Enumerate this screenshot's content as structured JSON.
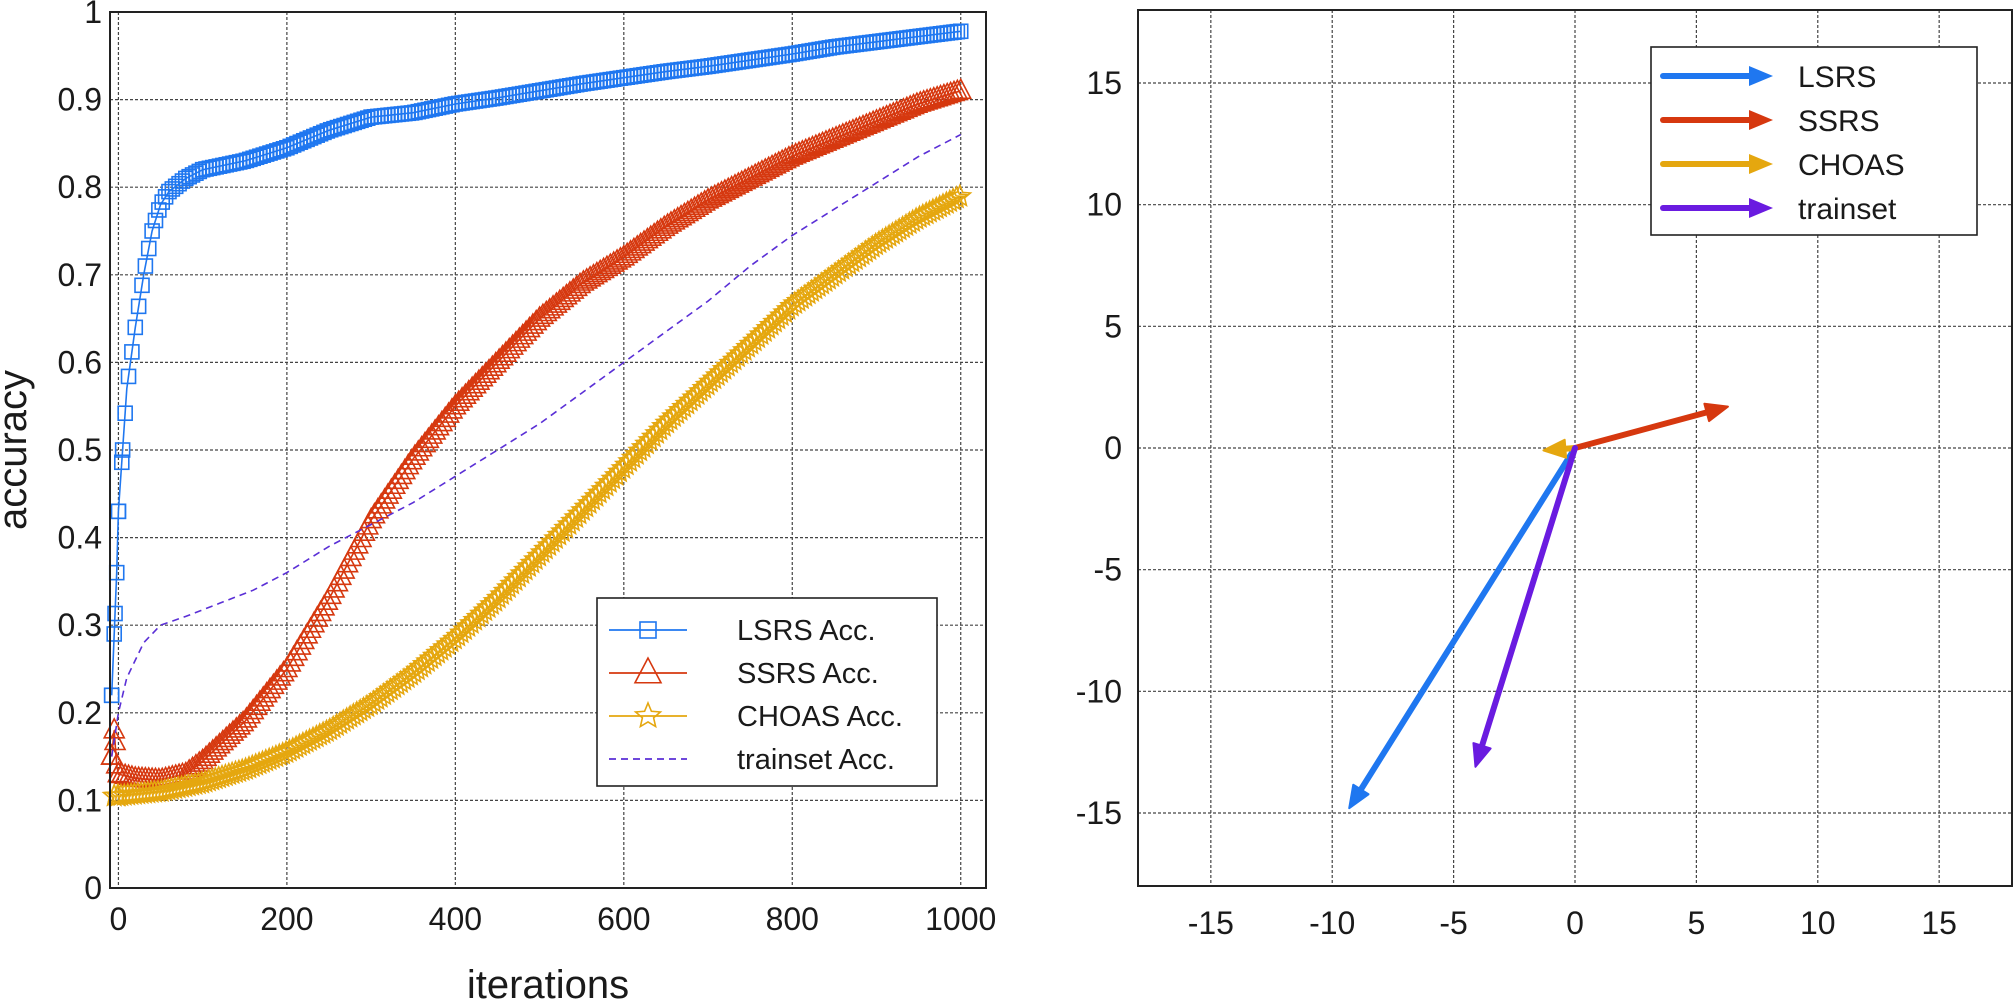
{
  "chart_data": [
    {
      "type": "line",
      "title": "",
      "xlabel": "iterations",
      "ylabel": "accuracy",
      "xlim": [
        -10,
        1030
      ],
      "ylim": [
        0,
        1
      ],
      "xticks": [
        "0",
        "200",
        "400",
        "600",
        "800",
        "1000"
      ],
      "yticks": [
        "0",
        "0.1",
        "0.2",
        "0.3",
        "0.4",
        "0.5",
        "0.6",
        "0.7",
        "0.8",
        "0.9",
        "1"
      ],
      "grid": true,
      "legend_position": "bottom-right",
      "series": [
        {
          "name": "LSRS Acc.",
          "color": "#1f77f0",
          "marker": "square",
          "x": [
            -8,
            -5,
            -2,
            0,
            5,
            10,
            20,
            30,
            40,
            50,
            60,
            80,
            100,
            150,
            200,
            250,
            300,
            350,
            400,
            450,
            500,
            550,
            600,
            650,
            700,
            750,
            800,
            850,
            900,
            950,
            1000
          ],
          "y": [
            0.22,
            0.29,
            0.36,
            0.43,
            0.5,
            0.57,
            0.64,
            0.7,
            0.75,
            0.78,
            0.795,
            0.81,
            0.82,
            0.83,
            0.845,
            0.865,
            0.88,
            0.885,
            0.895,
            0.902,
            0.91,
            0.918,
            0.925,
            0.932,
            0.938,
            0.945,
            0.952,
            0.96,
            0.966,
            0.972,
            0.978
          ]
        },
        {
          "name": "SSRS Acc.",
          "color": "#d6380f",
          "marker": "triangle",
          "x": [
            -8,
            -5,
            -2,
            0,
            20,
            50,
            80,
            100,
            150,
            200,
            250,
            300,
            350,
            400,
            450,
            500,
            550,
            600,
            650,
            700,
            750,
            800,
            850,
            900,
            950,
            1000
          ],
          "y": [
            0.15,
            0.18,
            0.14,
            0.13,
            0.125,
            0.123,
            0.13,
            0.145,
            0.19,
            0.25,
            0.33,
            0.42,
            0.49,
            0.55,
            0.6,
            0.65,
            0.69,
            0.72,
            0.755,
            0.785,
            0.81,
            0.835,
            0.855,
            0.875,
            0.895,
            0.91
          ]
        },
        {
          "name": "CHOAS Acc.",
          "color": "#e5a70f",
          "marker": "star",
          "x": [
            -5,
            0,
            50,
            100,
            150,
            200,
            250,
            300,
            350,
            400,
            450,
            500,
            550,
            600,
            650,
            700,
            750,
            800,
            850,
            900,
            950,
            1000
          ],
          "y": [
            0.105,
            0.105,
            0.11,
            0.12,
            0.135,
            0.155,
            0.18,
            0.21,
            0.245,
            0.285,
            0.33,
            0.38,
            0.43,
            0.48,
            0.53,
            0.575,
            0.62,
            0.665,
            0.7,
            0.735,
            0.765,
            0.79
          ]
        },
        {
          "name": "trainset Acc.",
          "color": "#5a2fd6",
          "marker": "dashed",
          "x": [
            -8,
            0,
            10,
            30,
            50,
            80,
            120,
            160,
            200,
            250,
            300,
            350,
            400,
            450,
            500,
            550,
            600,
            650,
            700,
            750,
            800,
            850,
            900,
            950,
            1000
          ],
          "y": [
            0.15,
            0.2,
            0.24,
            0.28,
            0.3,
            0.31,
            0.325,
            0.34,
            0.36,
            0.39,
            0.415,
            0.44,
            0.47,
            0.5,
            0.53,
            0.565,
            0.6,
            0.635,
            0.67,
            0.71,
            0.745,
            0.775,
            0.805,
            0.835,
            0.86
          ]
        }
      ]
    },
    {
      "type": "vector",
      "title": "",
      "xlabel": "",
      "ylabel": "",
      "xlim": [
        -18,
        18
      ],
      "ylim": [
        -18,
        18
      ],
      "xticks": [
        "-15",
        "-10",
        "-5",
        "0",
        "5",
        "10",
        "15"
      ],
      "yticks": [
        "-15",
        "-10",
        "-5",
        "0",
        "5",
        "10",
        "15"
      ],
      "grid": true,
      "legend_position": "top-right",
      "series": [
        {
          "name": "LSRS",
          "color": "#1f77f0",
          "dx": -9.3,
          "dy": -14.8
        },
        {
          "name": "SSRS",
          "color": "#d6380f",
          "dx": 6.3,
          "dy": 1.7
        },
        {
          "name": "CHOAS",
          "color": "#e5a70f",
          "dx": -1.3,
          "dy": -0.1
        },
        {
          "name": "trainset",
          "color": "#6a1be0",
          "dx": -4.1,
          "dy": -13.1
        }
      ]
    }
  ]
}
